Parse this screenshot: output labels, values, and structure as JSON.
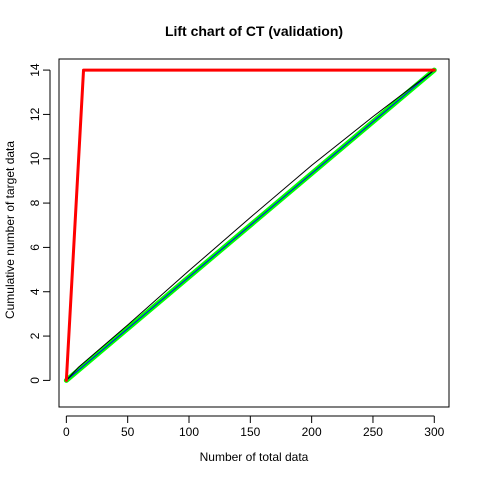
{
  "chart_data": {
    "type": "line",
    "title": "Lift chart of CT (validation)",
    "xlabel": "Number of total data",
    "ylabel": "Cumulative number of target data",
    "xlim": [
      -6,
      312
    ],
    "ylim": [
      -1.2,
      14.5
    ],
    "x_ticks": [
      0,
      50,
      100,
      150,
      200,
      250,
      300
    ],
    "y_ticks": [
      0,
      2,
      4,
      6,
      8,
      10,
      12,
      14
    ],
    "grid": false,
    "legend": "none",
    "series": [
      {
        "color": "#00ff00",
        "width": 5,
        "x": [
          0,
          300
        ],
        "y": [
          0,
          14
        ]
      },
      {
        "color": "#0000ff",
        "width": 1,
        "x": [
          0,
          300
        ],
        "y": [
          0,
          14
        ]
      },
      {
        "color": "#000000",
        "width": 1,
        "x": [
          0,
          10,
          50,
          100,
          150,
          200,
          250,
          300
        ],
        "y": [
          0,
          0.6,
          2.5,
          4.95,
          7.35,
          9.7,
          11.9,
          14
        ]
      },
      {
        "color": "#ff0000",
        "width": 3,
        "x": [
          0,
          14,
          300
        ],
        "y": [
          0,
          14,
          14
        ]
      }
    ]
  }
}
